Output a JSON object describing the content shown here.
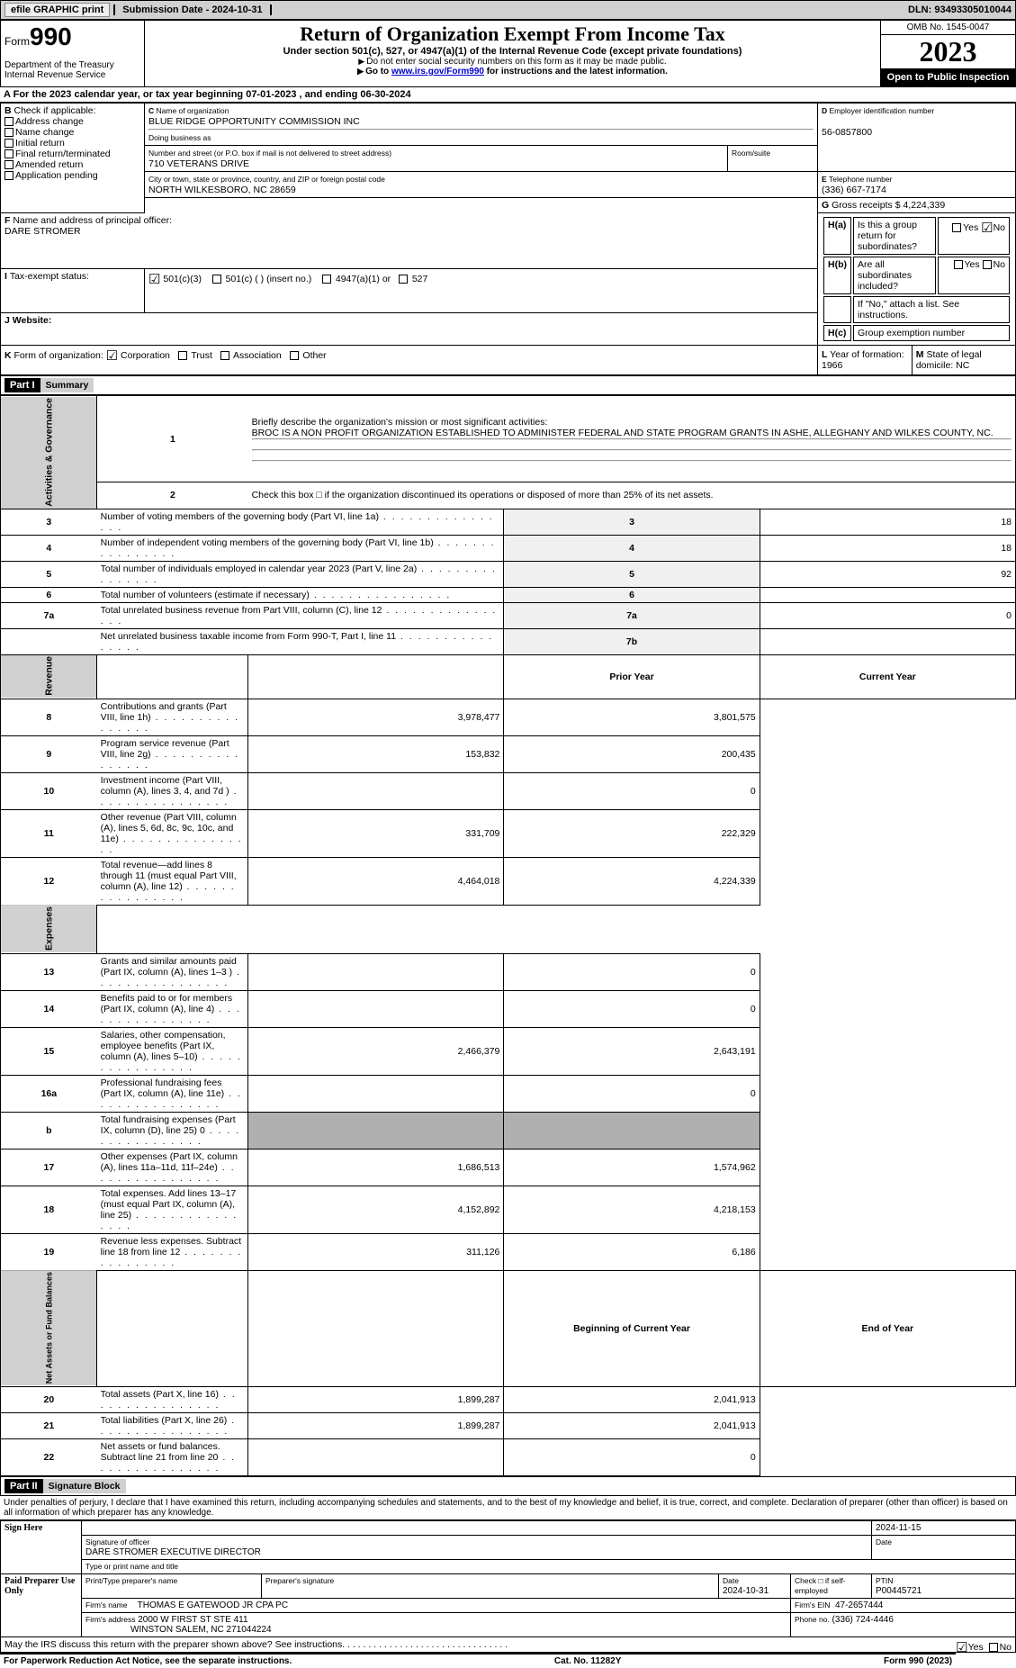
{
  "topbar": {
    "efile": "efile GRAPHIC print",
    "submission": "Submission Date - 2024-10-31",
    "dln": "DLN: 93493305010044"
  },
  "header": {
    "form_prefix": "Form",
    "form_no": "990",
    "dept": "Department of the Treasury Internal Revenue Service",
    "title": "Return of Organization Exempt From Income Tax",
    "subtitle": "Under section 501(c), 527, or 4947(a)(1) of the Internal Revenue Code (except private foundations)",
    "note1": "Do not enter social security numbers on this form as it may be made public.",
    "note2_pre": "Go to ",
    "note2_link": "www.irs.gov/Form990",
    "note2_post": " for instructions and the latest information.",
    "omb": "OMB No. 1545-0047",
    "year": "2023",
    "open": "Open to Public Inspection"
  },
  "A": {
    "line": "For the 2023 calendar year, or tax year beginning 07-01-2023    , and ending 06-30-2024"
  },
  "B": {
    "label": "Check if applicable:",
    "opts": [
      "Address change",
      "Name change",
      "Initial return",
      "Final return/terminated",
      "Amended return",
      "Application pending"
    ]
  },
  "C": {
    "name_lbl": "Name of organization",
    "name": "BLUE RIDGE OPPORTUNITY COMMISSION INC",
    "dba_lbl": "Doing business as",
    "addr_lbl": "Number and street (or P.O. box if mail is not delivered to street address)",
    "addr": "710 VETERANS DRIVE",
    "room_lbl": "Room/suite",
    "city_lbl": "City or town, state or province, country, and ZIP or foreign postal code",
    "city": "NORTH WILKESBORO, NC  28659"
  },
  "D": {
    "lbl": "Employer identification number",
    "val": "56-0857800"
  },
  "E": {
    "lbl": "Telephone number",
    "val": "(336) 667-7174"
  },
  "G": {
    "lbl": "Gross receipts $",
    "val": "4,224,339"
  },
  "F": {
    "lbl": "Name and address of principal officer:",
    "val": "DARE STROMER"
  },
  "H": {
    "a": "Is this a group return for subordinates?",
    "b": "Are all subordinates included?",
    "b_note": "If \"No,\" attach a list. See instructions.",
    "c": "Group exemption number"
  },
  "I": {
    "lbl": "Tax-exempt status:",
    "o1": "501(c)(3)",
    "o2": "501(c) (  ) (insert no.)",
    "o3": "4947(a)(1) or",
    "o4": "527"
  },
  "J": {
    "lbl": "Website:"
  },
  "K": {
    "lbl": "Form of organization:",
    "o1": "Corporation",
    "o2": "Trust",
    "o3": "Association",
    "o4": "Other"
  },
  "L": {
    "lbl": "Year of formation:",
    "val": "1966"
  },
  "M": {
    "lbl": "State of legal domicile:",
    "val": "NC"
  },
  "part1": {
    "hdr": "Part I",
    "title": "Summary",
    "sections": {
      "gov": "Activities & Governance",
      "rev": "Revenue",
      "exp": "Expenses",
      "net": "Net Assets or Fund Balances"
    },
    "l1_lbl": "Briefly describe the organization's mission or most significant activities:",
    "l1_txt": "BROC IS A NON PROFIT ORGANIZATION ESTABLISHED TO ADMINISTER FEDERAL AND STATE PROGRAM GRANTS IN ASHE, ALLEGHANY AND WILKES COUNTY, NC.",
    "l2": "Check this box  □  if the organization discontinued its operations or disposed of more than 25% of its net assets.",
    "rows_gov": [
      {
        "n": "3",
        "t": "Number of voting members of the governing body (Part VI, line 1a)",
        "box": "3",
        "v": "18"
      },
      {
        "n": "4",
        "t": "Number of independent voting members of the governing body (Part VI, line 1b)",
        "box": "4",
        "v": "18"
      },
      {
        "n": "5",
        "t": "Total number of individuals employed in calendar year 2023 (Part V, line 2a)",
        "box": "5",
        "v": "92"
      },
      {
        "n": "6",
        "t": "Total number of volunteers (estimate if necessary)",
        "box": "6",
        "v": ""
      },
      {
        "n": "7a",
        "t": "Total unrelated business revenue from Part VIII, column (C), line 12",
        "box": "7a",
        "v": "0"
      },
      {
        "n": "",
        "t": "Net unrelated business taxable income from Form 990-T, Part I, line 11",
        "box": "7b",
        "v": ""
      }
    ],
    "col_prior": "Prior Year",
    "col_curr": "Current Year",
    "rows_rev": [
      {
        "n": "8",
        "t": "Contributions and grants (Part VIII, line 1h)",
        "p": "3,978,477",
        "c": "3,801,575"
      },
      {
        "n": "9",
        "t": "Program service revenue (Part VIII, line 2g)",
        "p": "153,832",
        "c": "200,435"
      },
      {
        "n": "10",
        "t": "Investment income (Part VIII, column (A), lines 3, 4, and 7d )",
        "p": "",
        "c": "0"
      },
      {
        "n": "11",
        "t": "Other revenue (Part VIII, column (A), lines 5, 6d, 8c, 9c, 10c, and 11e)",
        "p": "331,709",
        "c": "222,329"
      },
      {
        "n": "12",
        "t": "Total revenue—add lines 8 through 11 (must equal Part VIII, column (A), line 12)",
        "p": "4,464,018",
        "c": "4,224,339"
      }
    ],
    "rows_exp": [
      {
        "n": "13",
        "t": "Grants and similar amounts paid (Part IX, column (A), lines 1–3 )",
        "p": "",
        "c": "0"
      },
      {
        "n": "14",
        "t": "Benefits paid to or for members (Part IX, column (A), line 4)",
        "p": "",
        "c": "0"
      },
      {
        "n": "15",
        "t": "Salaries, other compensation, employee benefits (Part IX, column (A), lines 5–10)",
        "p": "2,466,379",
        "c": "2,643,191"
      },
      {
        "n": "16a",
        "t": "Professional fundraising fees (Part IX, column (A), line 11e)",
        "p": "",
        "c": "0"
      },
      {
        "n": "b",
        "t": "Total fundraising expenses (Part IX, column (D), line 25) 0",
        "p": "SHADE",
        "c": "SHADE"
      },
      {
        "n": "17",
        "t": "Other expenses (Part IX, column (A), lines 11a–11d, 11f–24e)",
        "p": "1,686,513",
        "c": "1,574,962"
      },
      {
        "n": "18",
        "t": "Total expenses. Add lines 13–17 (must equal Part IX, column (A), line 25)",
        "p": "4,152,892",
        "c": "4,218,153"
      },
      {
        "n": "19",
        "t": "Revenue less expenses. Subtract line 18 from line 12",
        "p": "311,126",
        "c": "6,186"
      }
    ],
    "col_beg": "Beginning of Current Year",
    "col_end": "End of Year",
    "rows_net": [
      {
        "n": "20",
        "t": "Total assets (Part X, line 16)",
        "p": "1,899,287",
        "c": "2,041,913"
      },
      {
        "n": "21",
        "t": "Total liabilities (Part X, line 26)",
        "p": "1,899,287",
        "c": "2,041,913"
      },
      {
        "n": "22",
        "t": "Net assets or fund balances. Subtract line 21 from line 20",
        "p": "",
        "c": "0"
      }
    ]
  },
  "part2": {
    "hdr": "Part II",
    "title": "Signature Block",
    "decl": "Under penalties of perjury, I declare that I have examined this return, including accompanying schedules and statements, and to the best of my knowledge and belief, it is true, correct, and complete. Declaration of preparer (other than officer) is based on all information of which preparer has any knowledge.",
    "sign": "Sign Here",
    "sig_lbl": "Signature of officer",
    "date_lbl": "Date",
    "date1": "2024-11-15",
    "officer": "DARE STROMER  EXECUTIVE DIRECTOR",
    "type_lbl": "Type or print name and title",
    "paid": "Paid Preparer Use Only",
    "prep_name_lbl": "Print/Type preparer's name",
    "prep_sig_lbl": "Preparer's signature",
    "date2_lbl": "Date",
    "date2": "2024-10-31",
    "check_lbl": "Check □ if self-employed",
    "ptin_lbl": "PTIN",
    "ptin": "P00445721",
    "firm_lbl": "Firm's name",
    "firm": "THOMAS E GATEWOOD JR CPA PC",
    "ein_lbl": "Firm's EIN",
    "ein": "47-2657444",
    "addr_lbl": "Firm's address",
    "addr": "2000 W FIRST ST STE 411",
    "addr2": "WINSTON SALEM, NC  271044224",
    "phone_lbl": "Phone no.",
    "phone": "(336) 724-4446",
    "discuss": "May the IRS discuss this return with the preparer shown above? See instructions."
  },
  "footer": {
    "l": "For Paperwork Reduction Act Notice, see the separate instructions.",
    "c": "Cat. No. 11282Y",
    "r": "Form 990 (2023)"
  }
}
